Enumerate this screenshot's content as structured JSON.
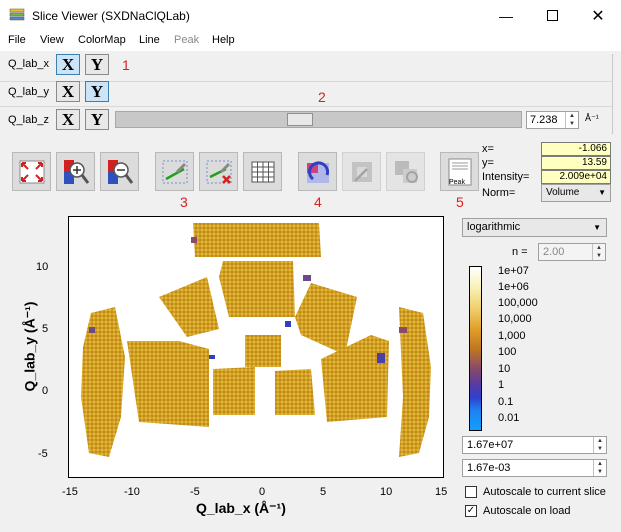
{
  "window": {
    "title": "Slice Viewer (SXDNaClQLab)"
  },
  "menu": [
    "File",
    "View",
    "ColorMap",
    "Line",
    "Peak",
    "Help"
  ],
  "dimensions": [
    {
      "label": "Q_lab_x",
      "x_label": "X",
      "y_label": "Y",
      "active": "X"
    },
    {
      "label": "Q_lab_y",
      "x_label": "X",
      "y_label": "Y",
      "active": "Y"
    },
    {
      "label": "Q_lab_z",
      "x_label": "X",
      "y_label": "Y",
      "active": "none"
    }
  ],
  "slice": {
    "value": "7.238",
    "units": "Å⁻¹",
    "position_fraction": 0.45
  },
  "annotations": [
    "1",
    "2",
    "3",
    "4",
    "5"
  ],
  "toolbar": {
    "peak_button_label": "Peak",
    "icons": [
      "fit-view-icon",
      "zoom-in-icon",
      "zoom-out-icon",
      "line-tool-icon",
      "delete-line-icon",
      "grid-icon",
      "rebin-icon",
      "rebin-disabled-icon",
      "rebin-auto-icon",
      "peak-list-icon"
    ]
  },
  "coords": {
    "x_label": "x=",
    "x_value": "-1.066",
    "y_label": "y=",
    "y_value": "13.59",
    "intensity_label": "Intensity=",
    "intensity_value": "2.009e+04",
    "norm_label": "Norm=",
    "norm_value": "Volume"
  },
  "plot": {
    "xlabel": "Q_lab_x (Å⁻¹)",
    "ylabel": "Q_lab_y (Å⁻¹)",
    "xticks": [
      "-15",
      "-10",
      "-5",
      "0",
      "5",
      "10",
      "15"
    ],
    "yticks": [
      "10",
      "5",
      "0",
      "-5"
    ],
    "xlim": [
      -15,
      15
    ],
    "ylim": [
      -6,
      14
    ]
  },
  "colormap": {
    "scale_type": "logarithmic",
    "n_label": "n =",
    "n_value": "2.00",
    "ticks": [
      "1e+07",
      "1e+06",
      "100,000",
      "10,000",
      "1,000",
      "100",
      "10",
      "1",
      "0.1",
      "0.01"
    ],
    "max_value": "1.67e+07",
    "min_value": "1.67e-03",
    "autoscale_slice_label": "Autoscale to current slice",
    "autoscale_slice_checked": false,
    "autoscale_load_label": "Autoscale on load",
    "autoscale_load_checked": true
  },
  "colors": {
    "accent": "#cce4f7",
    "annotation": "#d92020",
    "data_main": "#d9a020"
  }
}
